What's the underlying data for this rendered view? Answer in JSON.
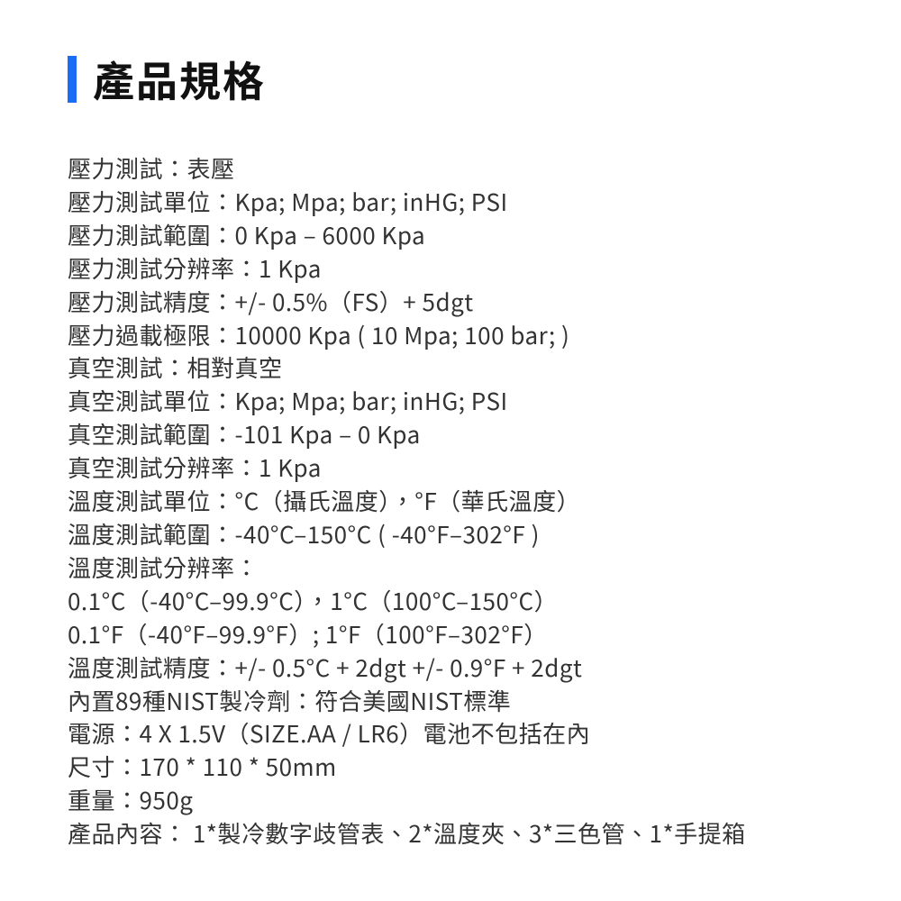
{
  "heading": {
    "accent_color": "#1b6ef3",
    "title": "產品規格",
    "title_fontsize": 46,
    "title_weight": "bold",
    "title_color": "#111111"
  },
  "body": {
    "fontsize": 26,
    "line_height": 1.42,
    "text_color": "#333333"
  },
  "specs": [
    "壓力測試：表壓",
    "壓力測試單位：Kpa; Mpa; bar; inHG; PSI",
    "壓力測試範圍：0 Kpa – 6000 Kpa",
    "壓力測試分辨率：1 Kpa",
    "壓力測試精度：+/- 0.5%（FS）+ 5dgt",
    "壓力過載極限：10000 Kpa ( 10 Mpa; 100 bar; )",
    "真空測試：相對真空",
    "真空測試單位：Kpa; Mpa; bar; inHG; PSI",
    "真空測試範圍：-101 Kpa – 0 Kpa",
    "真空測試分辨率：1 Kpa",
    "溫度測試單位：°C（攝氏溫度），°F（華氏溫度）",
    "溫度測試範圍：-40°C–150°C ( -40°F–302°F )",
    "溫度測試分辨率：",
    "0.1°C（-40°C–99.9°C），1°C（100°C–150°C）",
    "0.1°F（-40°F–99.9°F）; 1°F（100°F–302°F）",
    "溫度測試精度：+/- 0.5°C + 2dgt +/- 0.9°F + 2dgt",
    "內置89種NIST製冷劑：符合美國NIST標準",
    "電源：4 X 1.5V（SIZE.AA / LR6）電池不包括在內",
    "尺寸：170 * 110 * 50mm",
    "重量：950g",
    "產品內容： 1*製冷數字歧管表、2*溫度夾、3*三色管、1*手提箱"
  ]
}
